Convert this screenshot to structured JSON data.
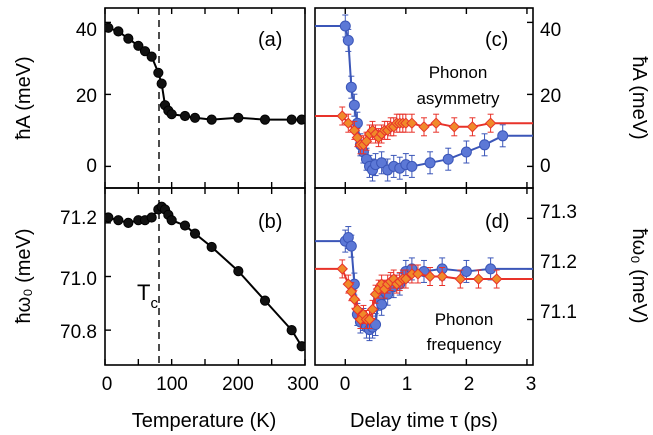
{
  "colors": {
    "black": "#000000",
    "blue": "#3b56b8",
    "blue_fill": "#5c78d6",
    "red": "#e8322a",
    "orange": "#f08a2a"
  },
  "panels": {
    "a": {
      "letter": "(a)",
      "ylabel": "ħA (meV)",
      "yticks": [
        "40",
        "20",
        "0"
      ]
    },
    "b": {
      "letter": "(b)",
      "ylabel": "ħω₀ (meV)",
      "yticks": [
        "71.2",
        "71.0",
        "70.8"
      ],
      "xticks": [
        "0",
        "100",
        "200",
        "300"
      ],
      "xlabel": "Temperature (K)",
      "tc_label": "T",
      "tc_sub": "c"
    },
    "c": {
      "letter": "(c)",
      "ylabel": "ħA (meV)",
      "yticks": [
        "40",
        "20",
        "0"
      ],
      "annotation_line1": "Phonon",
      "annotation_line2": "asymmetry"
    },
    "d": {
      "letter": "(d)",
      "ylabel": "ħω₀ (meV)",
      "yticks": [
        "71.3",
        "71.2",
        "71.1"
      ],
      "xticks": [
        "0",
        "1",
        "2",
        "3"
      ],
      "xlabel": "Delay time τ (ps)",
      "annotation_line1": "Phonon",
      "annotation_line2": "frequency"
    }
  },
  "chart_data": [
    {
      "panel": "a",
      "type": "line",
      "xlabel": "",
      "ylabel": "ħA (meV)",
      "xlim": [
        0,
        300
      ],
      "ylim": [
        -6,
        44
      ],
      "vline_x": 90,
      "series": [
        {
          "color": "#000000",
          "marker": "circle",
          "x": [
            5,
            20,
            35,
            50,
            60,
            70,
            80,
            85,
            90,
            95,
            100,
            120,
            135,
            160,
            200,
            240,
            280,
            295
          ],
          "y": [
            38.5,
            37.5,
            35.5,
            33.5,
            32,
            30.5,
            26,
            23,
            17,
            15.5,
            14.5,
            14,
            13.5,
            13,
            13.5,
            13,
            13,
            13
          ]
        }
      ]
    },
    {
      "panel": "b",
      "type": "line",
      "xlabel": "Temperature (K)",
      "ylabel": "ħω₀ (meV)",
      "xlim": [
        0,
        300
      ],
      "ylim": [
        70.67,
        71.33
      ],
      "vline_x": 90,
      "series": [
        {
          "color": "#000000",
          "marker": "circle",
          "x": [
            5,
            20,
            35,
            50,
            60,
            70,
            80,
            85,
            90,
            95,
            100,
            120,
            135,
            160,
            200,
            240,
            280,
            295
          ],
          "y": [
            71.22,
            71.21,
            71.2,
            71.21,
            71.21,
            71.22,
            71.25,
            71.26,
            71.25,
            71.23,
            71.21,
            71.19,
            71.16,
            71.11,
            71.02,
            70.91,
            70.8,
            70.74
          ]
        }
      ]
    },
    {
      "panel": "c",
      "type": "line",
      "xlabel": "",
      "ylabel": "ħA (meV)",
      "xlim": [
        -0.5,
        3.1
      ],
      "ylim": [
        -6,
        44
      ],
      "series": [
        {
          "color": "#3b56b8",
          "marker": "circle",
          "x": [
            0,
            0.05,
            0.1,
            0.15,
            0.2,
            0.25,
            0.3,
            0.35,
            0.4,
            0.45,
            0.5,
            0.6,
            0.7,
            0.8,
            0.9,
            1.0,
            1.1,
            1.4,
            1.7,
            2.0,
            2.3,
            2.6
          ],
          "y": [
            39,
            35,
            22,
            17,
            12,
            6,
            4,
            2,
            0,
            -1,
            0.5,
            1,
            -1,
            0,
            -0.5,
            0.5,
            0,
            1,
            2,
            4,
            6,
            8.5
          ]
        },
        {
          "color": "#e8322a",
          "marker": "diamond",
          "x": [
            -0.05,
            0.05,
            0.15,
            0.2,
            0.25,
            0.3,
            0.35,
            0.4,
            0.45,
            0.5,
            0.55,
            0.6,
            0.65,
            0.7,
            0.75,
            0.8,
            0.85,
            0.9,
            0.95,
            1.0,
            1.1,
            1.3,
            1.5,
            1.8,
            2.1,
            2.4
          ],
          "y": [
            14,
            12,
            10,
            8,
            6,
            6,
            7,
            9,
            10,
            9,
            8,
            9,
            10,
            10,
            11,
            11,
            12,
            12,
            12,
            12,
            12,
            11,
            12,
            11,
            11,
            12
          ]
        }
      ]
    },
    {
      "panel": "d",
      "type": "line",
      "xlabel": "Delay time τ (ps)",
      "ylabel": "ħω₀ (meV)",
      "xlim": [
        -0.5,
        3.1
      ],
      "ylim": [
        71.01,
        71.36
      ],
      "series": [
        {
          "color": "#3b56b8",
          "marker": "circle",
          "x": [
            0,
            0.05,
            0.1,
            0.15,
            0.2,
            0.25,
            0.3,
            0.35,
            0.4,
            0.45,
            0.5,
            0.55,
            0.6,
            0.7,
            0.8,
            0.9,
            1.0,
            1.1,
            1.3,
            1.6,
            2.0,
            2.4
          ],
          "y": [
            71.255,
            71.262,
            71.245,
            71.17,
            71.11,
            71.095,
            71.1,
            71.085,
            71.08,
            71.085,
            71.09,
            71.14,
            71.13,
            71.15,
            71.165,
            71.17,
            71.195,
            71.2,
            71.195,
            71.2,
            71.195,
            71.2
          ]
        },
        {
          "color": "#e8322a",
          "marker": "diamond",
          "x": [
            -0.05,
            0.05,
            0.1,
            0.15,
            0.2,
            0.25,
            0.3,
            0.35,
            0.4,
            0.45,
            0.5,
            0.55,
            0.6,
            0.65,
            0.7,
            0.75,
            0.8,
            0.85,
            0.9,
            0.95,
            1.0,
            1.1,
            1.2,
            1.4,
            1.6,
            1.9,
            2.2,
            2.5
          ],
          "y": [
            71.2,
            71.17,
            71.155,
            71.14,
            71.12,
            71.1,
            71.11,
            71.1,
            71.1,
            71.12,
            71.15,
            71.16,
            71.17,
            71.16,
            71.17,
            71.175,
            71.18,
            71.17,
            71.175,
            71.18,
            71.18,
            71.19,
            71.19,
            71.185,
            71.185,
            71.18,
            71.18,
            71.18
          ]
        }
      ]
    }
  ]
}
